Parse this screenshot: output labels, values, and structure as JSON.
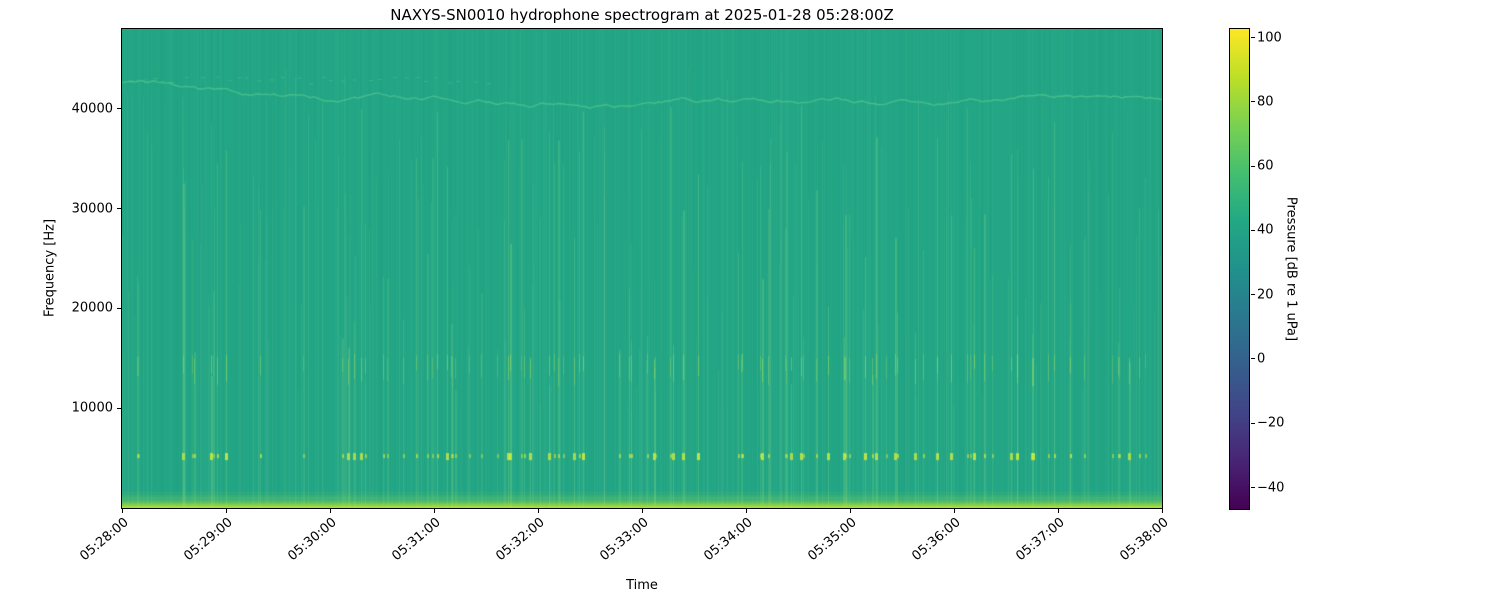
{
  "chart_data": {
    "type": "heatmap",
    "subtype": "spectrogram",
    "title": "NAXYS-SN0010 hydrophone spectrogram at 2025-01-28 05:28:00Z",
    "xlabel": "Time",
    "ylabel": "Frequency [Hz]",
    "x_ticks": [
      "05:28:00",
      "05:29:00",
      "05:30:00",
      "05:31:00",
      "05:32:00",
      "05:33:00",
      "05:34:00",
      "05:35:00",
      "05:36:00",
      "05:37:00",
      "05:38:00"
    ],
    "x_range": [
      "05:28:00",
      "05:38:00"
    ],
    "y_ticks": [
      10000,
      20000,
      30000,
      40000
    ],
    "y_range_hz": [
      0,
      48000
    ],
    "grid": false,
    "legend": "none",
    "colorbar": {
      "label": "Pressure [dB re 1 uPa]",
      "ticks": [
        100,
        80,
        60,
        40,
        20,
        0,
        -20,
        -40
      ],
      "vmin": -47,
      "vmax": 103,
      "colormap": "viridis",
      "gradient_stops": [
        [
          0.0,
          "#440154"
        ],
        [
          0.1,
          "#482475"
        ],
        [
          0.2,
          "#414487"
        ],
        [
          0.3,
          "#355f8d"
        ],
        [
          0.4,
          "#2a788e"
        ],
        [
          0.5,
          "#21918c"
        ],
        [
          0.6,
          "#22a884"
        ],
        [
          0.7,
          "#44bf70"
        ],
        [
          0.8,
          "#7ad151"
        ],
        [
          0.9,
          "#bddf26"
        ],
        [
          1.0,
          "#fde725"
        ]
      ]
    },
    "features": {
      "seed": 1337,
      "ambient": {
        "color": "#22a685",
        "level_db": 50
      },
      "faint_streaks": {
        "count": 190
      },
      "click_trains": {
        "count": 100,
        "max_top_hz": 24000,
        "freq_highlight_hz": 5200,
        "mid_band_hz": [
          12500,
          15200
        ],
        "description": "broadband impulsive clicks, brightest near 5 kHz and 13-15 kHz"
      },
      "tone_band": {
        "start_hz": 42600,
        "mid_hz": 40500,
        "jitter_hz": 700,
        "secondary_hz": 42900,
        "description": "wavy narrowband tone near 40-43 kHz"
      },
      "low_band": {
        "max_hz": 1600,
        "description": "bright low-frequency noise band at bottom"
      }
    }
  }
}
